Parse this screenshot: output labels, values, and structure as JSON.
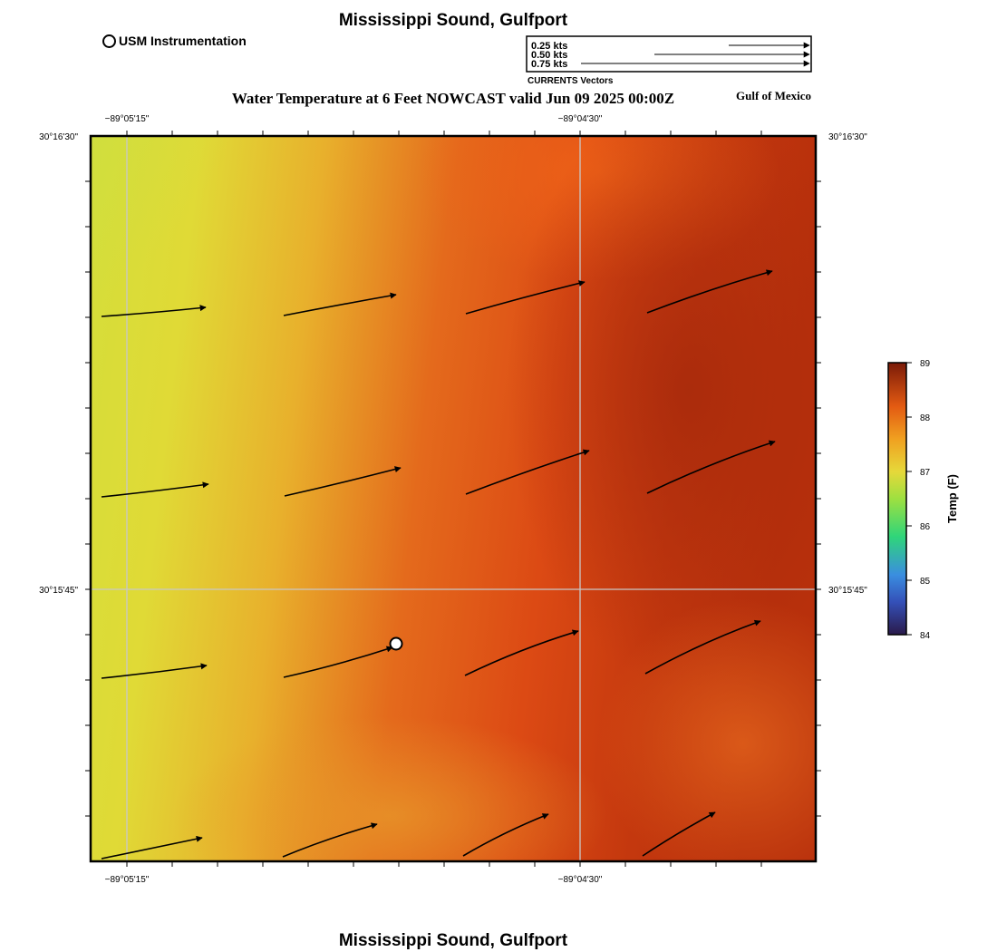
{
  "header": {
    "title": "Mississippi Sound, Gulfport",
    "bottom_title": "Mississippi Sound, Gulfport",
    "subtitle": "Water Temperature at 6 Feet NOWCAST valid Jun 09 2025 00:00Z",
    "region_label": "Gulf of Mexico",
    "station_legend_label": "USM Instrumentation"
  },
  "vector_legend": {
    "caption": "CURRENTS Vectors",
    "entries": [
      {
        "label": "0.25 kts",
        "speed_kts": 0.25
      },
      {
        "label": "0.50 kts",
        "speed_kts": 0.5
      },
      {
        "label": "0.75 kts",
        "speed_kts": 0.75
      }
    ]
  },
  "map": {
    "lon_labels": [
      "−89°05'15\"",
      "−89°04'30\""
    ],
    "lat_labels": [
      "30°16'30\"",
      "30°15'45\""
    ],
    "station_marker": "usm-instrument",
    "current_vectors_count": 16
  },
  "colorbar": {
    "label": "Temp (F)",
    "ticks": [
      "84",
      "85",
      "86",
      "87",
      "88",
      "89"
    ],
    "min": 84,
    "max": 89,
    "colors": [
      "#2a1a4a",
      "#3a6fd8",
      "#2fd57a",
      "#c9e23a",
      "#f0a020",
      "#e35a12",
      "#8a1f0a"
    ]
  },
  "field_colors": {
    "cool": "#c8e040",
    "mid": "#e8a028",
    "warm": "#e4561a",
    "hot": "#b63010"
  }
}
